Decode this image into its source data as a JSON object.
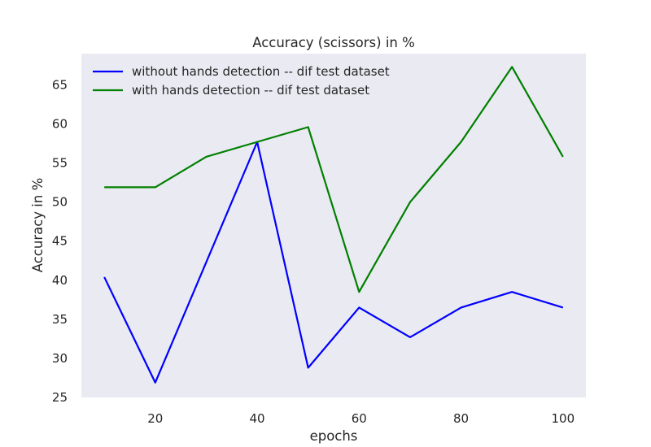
{
  "chart_data": {
    "type": "line",
    "title": "Accuracy (scissors)  in %",
    "xlabel": "epochs",
    "ylabel": "Accuracy in %",
    "x": [
      10,
      20,
      30,
      40,
      50,
      60,
      70,
      80,
      90,
      100
    ],
    "xticks": [
      20,
      40,
      60,
      80,
      100
    ],
    "yticks": [
      25,
      30,
      35,
      40,
      45,
      50,
      55,
      60,
      65
    ],
    "xlim": [
      5.5,
      104.5
    ],
    "ylim": [
      25,
      69
    ],
    "grid": false,
    "legend_position": "top-left",
    "background": "#eaeaf2",
    "series": [
      {
        "name": "without hands detection -- dif test dataset",
        "color": "#0000ff",
        "values": [
          40.4,
          26.9,
          42.3,
          57.7,
          28.8,
          36.5,
          32.7,
          36.5,
          38.5,
          36.5
        ]
      },
      {
        "name": "with hands detection -- dif test dataset",
        "color": "#008000",
        "values": [
          51.9,
          51.9,
          55.8,
          57.7,
          59.6,
          38.5,
          50.0,
          57.7,
          67.3,
          55.8
        ]
      }
    ]
  }
}
